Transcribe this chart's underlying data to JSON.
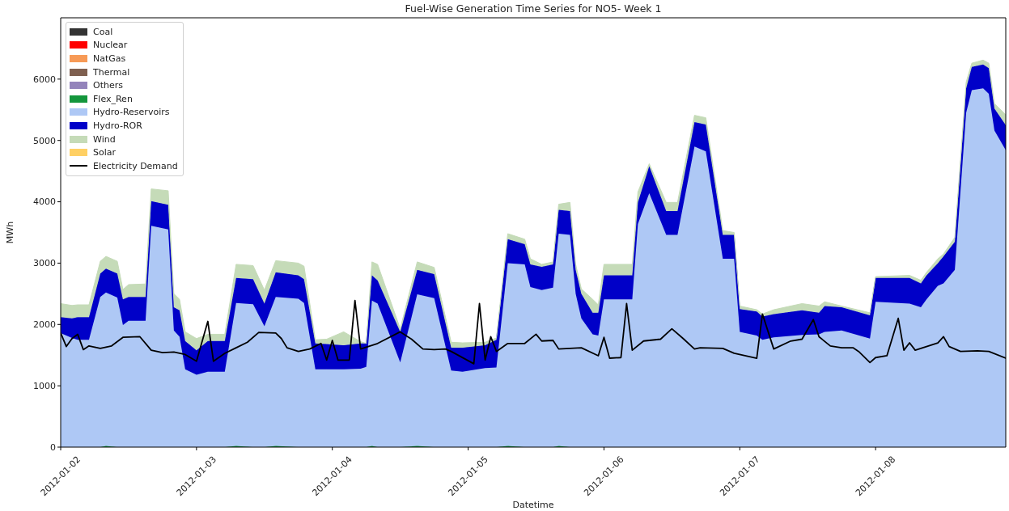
{
  "chart_data": {
    "type": "area",
    "stacked": true,
    "title": "Fuel-Wise Generation Time Series for NO5- Week 1",
    "xlabel": "Datetime",
    "ylabel": "MWh",
    "x": [
      "2012-01-02T00:00",
      "2012-01-02T02:00",
      "2012-01-02T03:00",
      "2012-01-02T05:00",
      "2012-01-02T07:00",
      "2012-01-02T08:00",
      "2012-01-02T10:00",
      "2012-01-02T11:00",
      "2012-01-02T12:00",
      "2012-01-02T15:00",
      "2012-01-02T16:00",
      "2012-01-02T19:00",
      "2012-01-02T20:00",
      "2012-01-02T21:00",
      "2012-01-02T22:00",
      "2012-01-03T00:00",
      "2012-01-03T02:00",
      "2012-01-03T05:00",
      "2012-01-03T07:00",
      "2012-01-03T10:00",
      "2012-01-03T12:00",
      "2012-01-03T14:00",
      "2012-01-03T18:00",
      "2012-01-03T19:00",
      "2012-01-03T21:00",
      "2012-01-03T23:00",
      "2012-01-04T02:00",
      "2012-01-04T05:00",
      "2012-01-04T06:00",
      "2012-01-04T07:00",
      "2012-01-04T08:00",
      "2012-01-04T12:00",
      "2012-01-04T15:00",
      "2012-01-04T18:00",
      "2012-01-04T21:00",
      "2012-01-04T23:00",
      "2012-01-05T03:00",
      "2012-01-05T05:00",
      "2012-01-05T07:00",
      "2012-01-05T10:00",
      "2012-01-05T11:00",
      "2012-01-05T13:00",
      "2012-01-05T15:00",
      "2012-01-05T16:00",
      "2012-01-05T18:00",
      "2012-01-05T19:00",
      "2012-01-05T20:00",
      "2012-01-05T22:00",
      "2012-01-05T23:00",
      "2012-01-06T00:00",
      "2012-01-06T05:00",
      "2012-01-06T06:00",
      "2012-01-06T08:00",
      "2012-01-06T11:00",
      "2012-01-06T13:00",
      "2012-01-06T16:00",
      "2012-01-06T18:00",
      "2012-01-06T21:00",
      "2012-01-06T23:00",
      "2012-01-07T00:00",
      "2012-01-07T03:00",
      "2012-01-07T04:00",
      "2012-01-07T06:00",
      "2012-01-07T11:00",
      "2012-01-07T14:00",
      "2012-01-07T15:00",
      "2012-01-07T18:00",
      "2012-01-07T23:00",
      "2012-01-08T00:00",
      "2012-01-08T06:00",
      "2012-01-08T08:00",
      "2012-01-08T09:00",
      "2012-01-08T11:00",
      "2012-01-08T12:00",
      "2012-01-08T14:00",
      "2012-01-08T16:00",
      "2012-01-08T17:00",
      "2012-01-08T19:00",
      "2012-01-08T20:00",
      "2012-01-08T21:00",
      "2012-01-08T23:00"
    ],
    "series": [
      {
        "name": "Coal",
        "color": "#333333",
        "values": [
          null,
          null,
          null,
          null,
          null,
          null,
          null,
          null,
          null,
          null,
          null,
          null,
          null,
          null,
          null,
          null,
          null,
          null,
          null,
          null,
          null,
          null,
          null,
          null,
          null,
          null,
          null,
          null,
          null,
          null,
          null,
          null,
          null,
          null,
          null,
          null,
          null,
          null,
          null,
          null,
          null,
          null,
          null,
          null,
          null,
          null,
          null,
          null,
          null,
          null,
          null,
          null,
          null,
          null,
          null,
          null,
          null,
          null,
          null,
          null,
          null,
          null,
          null,
          null,
          null,
          null,
          null,
          null,
          null,
          null,
          null,
          null,
          null,
          null,
          null,
          null,
          null,
          null,
          null,
          null,
          null
        ]
      },
      {
        "name": "Nuclear",
        "color": "#ff0000",
        "values": [
          null,
          null,
          null,
          null,
          null,
          null,
          null,
          null,
          null,
          null,
          null,
          null,
          null,
          null,
          null,
          null,
          null,
          null,
          null,
          null,
          null,
          null,
          null,
          null,
          null,
          null,
          null,
          null,
          null,
          null,
          null,
          null,
          null,
          null,
          null,
          null,
          null,
          null,
          null,
          null,
          null,
          null,
          null,
          null,
          null,
          null,
          null,
          null,
          null,
          null,
          null,
          null,
          null,
          null,
          null,
          null,
          null,
          null,
          null,
          null,
          null,
          null,
          null,
          null,
          null,
          null,
          null,
          null,
          null,
          null,
          null,
          null,
          null,
          null,
          null,
          null,
          null,
          null,
          null,
          null,
          null
        ]
      },
      {
        "name": "NatGas",
        "color": "#f79a56",
        "values": [
          null,
          null,
          null,
          null,
          null,
          null,
          null,
          null,
          null,
          null,
          null,
          null,
          null,
          null,
          null,
          null,
          null,
          null,
          null,
          null,
          null,
          null,
          null,
          null,
          null,
          null,
          null,
          null,
          null,
          null,
          null,
          null,
          null,
          null,
          null,
          null,
          null,
          null,
          null,
          null,
          null,
          null,
          null,
          null,
          null,
          null,
          null,
          null,
          null,
          null,
          null,
          null,
          null,
          null,
          null,
          null,
          null,
          null,
          null,
          null,
          null,
          null,
          null,
          null,
          null,
          null,
          null,
          null,
          null,
          null,
          null,
          null,
          null,
          null,
          null,
          null,
          null,
          null,
          null,
          null,
          null
        ]
      },
      {
        "name": "Thermal",
        "color": "#7f6050",
        "values": [
          null,
          null,
          null,
          null,
          null,
          null,
          null,
          null,
          null,
          null,
          null,
          null,
          null,
          null,
          null,
          null,
          null,
          null,
          null,
          null,
          null,
          null,
          null,
          null,
          null,
          null,
          null,
          null,
          null,
          null,
          null,
          null,
          null,
          null,
          null,
          null,
          null,
          null,
          null,
          null,
          null,
          null,
          null,
          null,
          null,
          null,
          null,
          null,
          null,
          null,
          null,
          null,
          null,
          null,
          null,
          null,
          null,
          null,
          null,
          null,
          null,
          null,
          null,
          null,
          null,
          null,
          null,
          null,
          null,
          null,
          null,
          null,
          null,
          null,
          null,
          null,
          null,
          null,
          null,
          null,
          null
        ]
      },
      {
        "name": "Others",
        "color": "#9484bb",
        "values": [
          null,
          null,
          null,
          null,
          null,
          null,
          null,
          null,
          null,
          null,
          null,
          null,
          null,
          null,
          null,
          null,
          null,
          null,
          null,
          null,
          null,
          null,
          null,
          null,
          null,
          null,
          null,
          null,
          null,
          null,
          null,
          null,
          null,
          null,
          null,
          null,
          null,
          null,
          null,
          null,
          null,
          null,
          null,
          null,
          null,
          null,
          null,
          null,
          null,
          null,
          null,
          null,
          null,
          null,
          null,
          null,
          null,
          null,
          null,
          null,
          null,
          null,
          null,
          null,
          null,
          null,
          null,
          null,
          null,
          null,
          null,
          null,
          null,
          null,
          null,
          null,
          null,
          null,
          null,
          null,
          null
        ]
      },
      {
        "name": "Flex_Ren",
        "color": "#14963c",
        "values": [
          0,
          0,
          0,
          0,
          0,
          20,
          0,
          0,
          0,
          0,
          0,
          0,
          0,
          0,
          0,
          0,
          0,
          0,
          20,
          0,
          0,
          20,
          0,
          0,
          0,
          0,
          0,
          0,
          0,
          20,
          0,
          0,
          20,
          0,
          0,
          0,
          0,
          0,
          20,
          0,
          0,
          0,
          0,
          20,
          0,
          0,
          0,
          0,
          0,
          0,
          0,
          0,
          0,
          0,
          0,
          0,
          0,
          0,
          0,
          0,
          0,
          0,
          0,
          0,
          0,
          0,
          0,
          0,
          0,
          0,
          0,
          0,
          0,
          0,
          0,
          0,
          0,
          0,
          0,
          0,
          0
        ]
      },
      {
        "name": "Hydro-Reservoirs",
        "color": "#aec8f5",
        "values": [
          1860,
          1780,
          1750,
          1750,
          2450,
          2500,
          2440,
          1990,
          2060,
          2060,
          3610,
          3550,
          1900,
          1800,
          1270,
          1180,
          1230,
          1230,
          2330,
          2330,
          1970,
          2430,
          2420,
          2350,
          1270,
          1270,
          1270,
          1280,
          1310,
          2370,
          2340,
          1380,
          2470,
          2430,
          1250,
          1230,
          1290,
          1300,
          2980,
          2980,
          2610,
          2560,
          2600,
          3460,
          3460,
          2500,
          2100,
          1840,
          1820,
          2410,
          2410,
          3640,
          4140,
          3460,
          3460,
          4900,
          4820,
          3070,
          3070,
          1880,
          1820,
          1750,
          1790,
          1830,
          1840,
          1880,
          1900,
          1770,
          2370,
          2340,
          2280,
          2410,
          2630,
          2670,
          2890,
          5450,
          5820,
          5850,
          5760,
          5160,
          4840
        ]
      },
      {
        "name": "Hydro-ROR",
        "color": "#0000c8",
        "values": [
          260,
          320,
          370,
          370,
          380,
          390,
          390,
          420,
          390,
          390,
          400,
          400,
          380,
          430,
          460,
          400,
          500,
          500,
          410,
          410,
          370,
          400,
          380,
          390,
          420,
          410,
          390,
          410,
          380,
          410,
          380,
          500,
          400,
          390,
          370,
          390,
          370,
          450,
          390,
          330,
          370,
          380,
          380,
          390,
          390,
          390,
          400,
          350,
          370,
          390,
          390,
          350,
          440,
          390,
          390,
          400,
          440,
          390,
          390,
          370,
          390,
          380,
          380,
          400,
          350,
          420,
          380,
          380,
          390,
          420,
          390,
          390,
          370,
          440,
          460,
          400,
          380,
          390,
          420,
          360,
          410
        ]
      },
      {
        "name": "Wind",
        "color": "#c5dbb8",
        "values": [
          220,
          210,
          200,
          200,
          200,
          200,
          200,
          160,
          200,
          210,
          200,
          230,
          220,
          180,
          150,
          190,
          110,
          110,
          220,
          220,
          220,
          190,
          200,
          210,
          60,
          80,
          220,
          30,
          0,
          220,
          260,
          50,
          130,
          110,
          90,
          80,
          50,
          30,
          90,
          80,
          90,
          40,
          40,
          90,
          140,
          90,
          80,
          220,
          130,
          180,
          180,
          170,
          40,
          140,
          140,
          110,
          110,
          70,
          40,
          50,
          30,
          40,
          70,
          110,
          110,
          70,
          20,
          40,
          20,
          40,
          50,
          50,
          70,
          40,
          70,
          100,
          60,
          70,
          80,
          80,
          170
        ]
      },
      {
        "name": "Solar",
        "color": "#ffd064",
        "values": [
          null,
          null,
          null,
          null,
          null,
          null,
          null,
          null,
          null,
          null,
          null,
          null,
          null,
          null,
          null,
          null,
          null,
          null,
          null,
          null,
          null,
          null,
          null,
          null,
          null,
          null,
          null,
          null,
          null,
          null,
          null,
          null,
          null,
          null,
          null,
          null,
          null,
          null,
          null,
          null,
          null,
          null,
          null,
          null,
          null,
          null,
          null,
          null,
          null,
          null,
          null,
          null,
          null,
          null,
          null,
          null,
          null,
          null,
          null,
          null,
          null,
          null,
          null,
          null,
          null,
          null,
          null,
          null,
          null,
          null,
          null,
          null,
          null,
          null,
          null,
          null,
          null,
          null,
          null,
          null,
          null
        ]
      },
      {
        "name": "Electricity Demand",
        "type": "line",
        "color": "#000000",
        "x": [
          "2012-01-02T00:00",
          "2012-01-02T01:00",
          "2012-01-02T02:00",
          "2012-01-02T03:00",
          "2012-01-02T04:00",
          "2012-01-02T05:00",
          "2012-01-02T07:00",
          "2012-01-02T09:00",
          "2012-01-02T11:00",
          "2012-01-02T14:00",
          "2012-01-02T16:00",
          "2012-01-02T18:00",
          "2012-01-02T20:00",
          "2012-01-02T22:00",
          "2012-01-03T00:00",
          "2012-01-03T02:00",
          "2012-01-03T03:00",
          "2012-01-03T05:00",
          "2012-01-03T07:00",
          "2012-01-03T09:00",
          "2012-01-03T11:00",
          "2012-01-03T14:00",
          "2012-01-03T15:00",
          "2012-01-03T16:00",
          "2012-01-03T18:00",
          "2012-01-03T20:00",
          "2012-01-03T22:00",
          "2012-01-03T23:00",
          "2012-01-04T00:00",
          "2012-01-04T01:00",
          "2012-01-04T03:00",
          "2012-01-04T04:00",
          "2012-01-04T05:00",
          "2012-01-04T08:00",
          "2012-01-04T12:00",
          "2012-01-04T14:00",
          "2012-01-04T16:00",
          "2012-01-04T18:00",
          "2012-01-04T20:00",
          "2012-01-04T21:00",
          "2012-01-05T01:00",
          "2012-01-05T02:00",
          "2012-01-05T03:00",
          "2012-01-05T04:00",
          "2012-01-05T05:00",
          "2012-01-05T07:00",
          "2012-01-05T10:00",
          "2012-01-05T12:00",
          "2012-01-05T13:00",
          "2012-01-05T15:00",
          "2012-01-05T16:00",
          "2012-01-05T20:00",
          "2012-01-05T23:00",
          "2012-01-06T00:00",
          "2012-01-06T01:00",
          "2012-01-06T03:00",
          "2012-01-06T04:00",
          "2012-01-06T05:00",
          "2012-01-06T07:00",
          "2012-01-06T10:00",
          "2012-01-06T12:00",
          "2012-01-06T14:00",
          "2012-01-06T16:00",
          "2012-01-06T17:00",
          "2012-01-06T21:00",
          "2012-01-06T23:00",
          "2012-01-07T03:00",
          "2012-01-07T04:00",
          "2012-01-07T06:00",
          "2012-01-07T09:00",
          "2012-01-07T11:00",
          "2012-01-07T13:00",
          "2012-01-07T14:00",
          "2012-01-07T16:00",
          "2012-01-07T18:00",
          "2012-01-07T20:00",
          "2012-01-07T21:00",
          "2012-01-07T23:00",
          "2012-01-08T00:00",
          "2012-01-08T02:00",
          "2012-01-08T04:00",
          "2012-01-08T05:00",
          "2012-01-08T06:00",
          "2012-01-08T07:00",
          "2012-01-08T09:00",
          "2012-01-08T11:00",
          "2012-01-08T12:00",
          "2012-01-08T13:00",
          "2012-01-08T15:00",
          "2012-01-08T18:00",
          "2012-01-08T20:00",
          "2012-01-08T23:00"
        ],
        "values": [
          1860,
          1640,
          1770,
          1840,
          1590,
          1650,
          1610,
          1650,
          1790,
          1800,
          1580,
          1540,
          1550,
          1510,
          1400,
          2050,
          1400,
          1530,
          1620,
          1710,
          1870,
          1860,
          1770,
          1620,
          1560,
          1600,
          1690,
          1420,
          1740,
          1420,
          1420,
          2390,
          1600,
          1690,
          1880,
          1760,
          1600,
          1590,
          1600,
          1560,
          1360,
          2340,
          1420,
          1800,
          1560,
          1690,
          1690,
          1840,
          1730,
          1740,
          1600,
          1620,
          1490,
          1790,
          1450,
          1460,
          2340,
          1580,
          1730,
          1760,
          1930,
          1770,
          1600,
          1620,
          1610,
          1530,
          1450,
          2170,
          1600,
          1730,
          1760,
          2080,
          1800,
          1650,
          1620,
          1620,
          1560,
          1380,
          1460,
          1490,
          2100,
          1580,
          1700,
          1580,
          1640,
          1700,
          1800,
          1640,
          1560,
          1570,
          1560,
          1450
        ]
      }
    ],
    "xlim": [
      "2012-01-02T00:00",
      "2012-01-08T23:00"
    ],
    "xticks": [
      "2012-01-02",
      "2012-01-03",
      "2012-01-04",
      "2012-01-05",
      "2012-01-06",
      "2012-01-07",
      "2012-01-08"
    ],
    "ylim": [
      0,
      7000
    ],
    "yticks": [
      0,
      1000,
      2000,
      3000,
      4000,
      5000,
      6000
    ],
    "legend": "top left"
  }
}
